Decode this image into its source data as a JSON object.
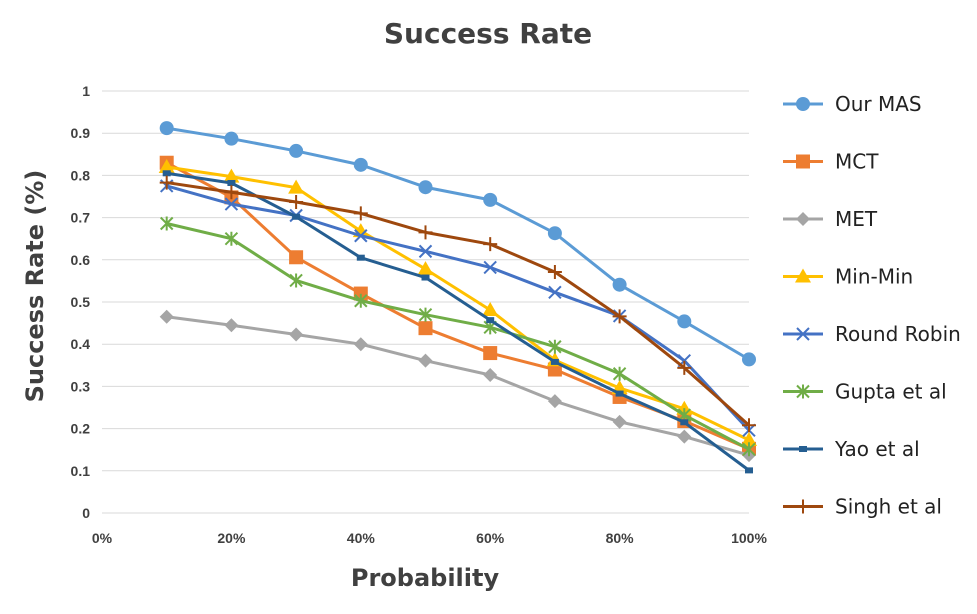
{
  "chart_data": {
    "type": "line",
    "title": "Success Rate",
    "xlabel": "Probability",
    "ylabel": "Success Rate (%)",
    "x": [
      0.1,
      0.2,
      0.3,
      0.4,
      0.5,
      0.6,
      0.7,
      0.8,
      0.9,
      1.0
    ],
    "xlim": [
      0,
      1
    ],
    "ylim": [
      0,
      1
    ],
    "x_ticks": [
      0,
      0.2,
      0.4,
      0.6,
      0.8,
      1.0
    ],
    "x_tick_labels": [
      "0%",
      "20%",
      "40%",
      "60%",
      "80%",
      "100%"
    ],
    "y_ticks": [
      0,
      0.1,
      0.2,
      0.3,
      0.4,
      0.5,
      0.6,
      0.7,
      0.8,
      0.9,
      1
    ],
    "y_tick_labels": [
      "0",
      "0.1",
      "0.2",
      "0.3",
      "0.4",
      "0.5",
      "0.6",
      "0.7",
      "0.8",
      "0.9",
      "1"
    ],
    "grid": true,
    "legend_position": "right",
    "series": [
      {
        "name": "Our MAS",
        "color": "#5B9BD5",
        "marker": "circle",
        "values": [
          0.912,
          0.887,
          0.858,
          0.825,
          0.772,
          0.742,
          0.663,
          0.541,
          0.454,
          0.364
        ]
      },
      {
        "name": "MCT",
        "color": "#ED7D31",
        "marker": "square",
        "values": [
          0.83,
          0.748,
          0.606,
          0.52,
          0.438,
          0.379,
          0.34,
          0.275,
          0.218,
          0.152
        ]
      },
      {
        "name": "MET",
        "color": "#A5A5A5",
        "marker": "diamond",
        "values": [
          0.465,
          0.445,
          0.423,
          0.4,
          0.361,
          0.327,
          0.265,
          0.216,
          0.181,
          0.137
        ]
      },
      {
        "name": "Min-Min",
        "color": "#FFC000",
        "marker": "triangle",
        "values": [
          0.82,
          0.797,
          0.771,
          0.668,
          0.578,
          0.481,
          0.362,
          0.296,
          0.247,
          0.173
        ]
      },
      {
        "name": "Round Robin",
        "color": "#4472C4",
        "marker": "x",
        "values": [
          0.775,
          0.732,
          0.705,
          0.657,
          0.62,
          0.582,
          0.523,
          0.467,
          0.361,
          0.196
        ]
      },
      {
        "name": "Gupta et al",
        "color": "#70AD47",
        "marker": "star",
        "values": [
          0.686,
          0.65,
          0.551,
          0.503,
          0.47,
          0.44,
          0.394,
          0.33,
          0.232,
          0.151
        ]
      },
      {
        "name": "Yao et al",
        "color": "#255E91",
        "marker": "dash",
        "values": [
          0.805,
          0.782,
          0.702,
          0.605,
          0.558,
          0.457,
          0.358,
          0.283,
          0.215,
          0.101
        ]
      },
      {
        "name": "Singh et al",
        "color": "#9E480E",
        "marker": "plus",
        "values": [
          0.783,
          0.76,
          0.737,
          0.71,
          0.665,
          0.637,
          0.571,
          0.466,
          0.344,
          0.208
        ]
      }
    ]
  }
}
